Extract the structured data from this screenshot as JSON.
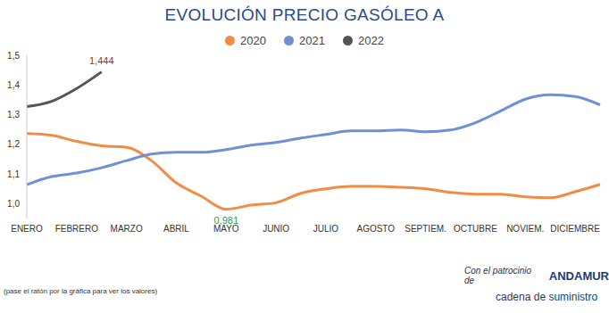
{
  "chart_data": {
    "type": "line",
    "title": "EVOLUCIÓN PRECIO GASÓLEO A",
    "categories": [
      "ENERO",
      null,
      "FEBRERO",
      null,
      "MARZO",
      null,
      "ABRIL",
      null,
      "MAYO",
      null,
      "JUNIO",
      null,
      "JULIO",
      null,
      "AGOSTO",
      null,
      "SEPTIEM.",
      null,
      "OCTUBRE",
      null,
      "NOVIEM.",
      null,
      "DICIEMBRE",
      null
    ],
    "series": [
      {
        "name": "2020",
        "color": "#f28c45",
        "values": [
          1.236,
          1.23,
          1.21,
          1.195,
          1.19,
          1.145,
          1.07,
          1.025,
          0.981,
          0.995,
          1.003,
          1.035,
          1.05,
          1.058,
          1.058,
          1.055,
          1.05,
          1.038,
          1.032,
          1.032,
          1.023,
          1.02,
          1.04,
          1.065
        ]
      },
      {
        "name": "2021",
        "color": "#6f8fd6",
        "values": [
          1.064,
          1.091,
          1.103,
          1.121,
          1.145,
          1.167,
          1.173,
          1.173,
          1.182,
          1.197,
          1.206,
          1.221,
          1.233,
          1.245,
          1.245,
          1.248,
          1.242,
          1.248,
          1.273,
          1.312,
          1.352,
          1.367,
          1.361,
          1.333
        ]
      },
      {
        "name": "2022",
        "color": "#555555",
        "values": [
          1.327,
          1.345,
          1.388,
          1.444,
          null,
          null,
          null,
          null,
          null,
          null,
          null,
          null,
          null,
          null,
          null,
          null,
          null,
          null,
          null,
          null,
          null,
          null,
          null,
          null
        ]
      }
    ],
    "ylim": [
      0.95,
      1.5
    ],
    "yticks": [
      {
        "value": 1.0,
        "label": "1,0"
      },
      {
        "value": 1.1,
        "label": "1,1"
      },
      {
        "value": 1.2,
        "label": "1,2"
      },
      {
        "value": 1.3,
        "label": "1,3"
      },
      {
        "value": 1.4,
        "label": "1,4"
      },
      {
        "value": 1.5,
        "label": "1,5"
      }
    ],
    "grid": false,
    "annotations": [
      {
        "x": 3,
        "y": 1.444,
        "text": "1,444",
        "color": "#c8102e"
      },
      {
        "x": 8,
        "y": 0.981,
        "text": "0,981",
        "color": "#2e9e3a"
      }
    ],
    "footer": {
      "note": "(pase el ratón por la gráfica para ver los valores)",
      "sponsor_text": "Con el patrocinio de",
      "sponsor": "ANDAMUR",
      "source": "cadena de suministro"
    }
  }
}
